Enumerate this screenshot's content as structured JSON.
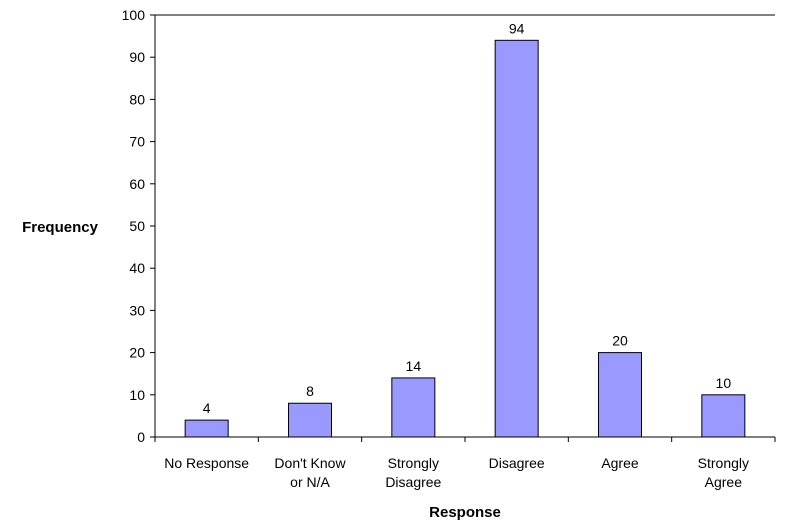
{
  "chart_data": {
    "type": "bar",
    "categories": [
      [
        "No Response"
      ],
      [
        "Don't Know",
        "or N/A"
      ],
      [
        "Strongly",
        "Disagree"
      ],
      [
        "Disagree"
      ],
      [
        "Agree"
      ],
      [
        "Strongly",
        "Agree"
      ]
    ],
    "values": [
      4,
      8,
      14,
      94,
      20,
      10
    ],
    "data_labels": [
      "4",
      "8",
      "14",
      "94",
      "20",
      "10"
    ],
    "xlabel": "Response",
    "ylabel": "Frequency",
    "ylim": [
      0,
      100
    ],
    "yticks": [
      0,
      10,
      20,
      30,
      40,
      50,
      60,
      70,
      80,
      90,
      100
    ],
    "bar_color": "#9999ff",
    "bar_outline": "#000000",
    "grid": false,
    "legend": "none"
  }
}
